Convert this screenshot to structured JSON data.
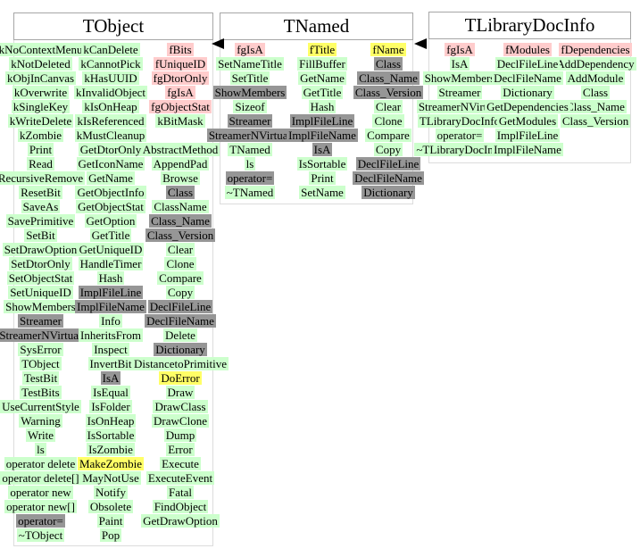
{
  "palette": {
    "green": "#ccffcc",
    "pink": "#ffcccc",
    "yellow": "#ffff66",
    "gray": "#969696"
  },
  "diagram": {
    "classes": [
      {
        "id": "tobject",
        "title": "TObject",
        "columns": [
          [
            [
              "kNoContextMenu",
              "green"
            ],
            [
              "kNotDeleted",
              "green"
            ],
            [
              "kObjInCanvas",
              "green"
            ],
            [
              "kOverwrite",
              "green"
            ],
            [
              "kSingleKey",
              "green"
            ],
            [
              "kWriteDelete",
              "green"
            ],
            [
              "kZombie",
              "green"
            ],
            [
              "Print",
              "green"
            ],
            [
              "Read",
              "green"
            ],
            [
              "RecursiveRemove",
              "green"
            ],
            [
              "ResetBit",
              "green"
            ],
            [
              "SaveAs",
              "green"
            ],
            [
              "SavePrimitive",
              "green"
            ],
            [
              "SetBit",
              "green"
            ],
            [
              "SetDrawOption",
              "green"
            ],
            [
              "SetDtorOnly",
              "green"
            ],
            [
              "SetObjectStat",
              "green"
            ],
            [
              "SetUniqueID",
              "green"
            ],
            [
              "ShowMembers",
              "green"
            ],
            [
              "Streamer",
              "gray"
            ],
            [
              "StreamerNVirtual",
              "gray"
            ],
            [
              "SysError",
              "green"
            ],
            [
              "TObject",
              "green"
            ],
            [
              "TestBit",
              "green"
            ],
            [
              "TestBits",
              "green"
            ],
            [
              "UseCurrentStyle",
              "green"
            ],
            [
              "Warning",
              "green"
            ],
            [
              "Write",
              "green"
            ],
            [
              "ls",
              "green"
            ],
            [
              "operator delete",
              "green"
            ],
            [
              "operator delete[]",
              "green"
            ],
            [
              "operator new",
              "green"
            ],
            [
              "operator new[]",
              "green"
            ],
            [
              "operator=",
              "gray"
            ],
            [
              "~TObject",
              "green"
            ]
          ],
          [
            [
              "kCanDelete",
              "green"
            ],
            [
              "kCannotPick",
              "green"
            ],
            [
              "kHasUUID",
              "green"
            ],
            [
              "kInvalidObject",
              "green"
            ],
            [
              "kIsOnHeap",
              "green"
            ],
            [
              "kIsReferenced",
              "green"
            ],
            [
              "kMustCleanup",
              "green"
            ],
            [
              "GetDtorOnly",
              "green"
            ],
            [
              "GetIconName",
              "green"
            ],
            [
              "GetName",
              "green"
            ],
            [
              "GetObjectInfo",
              "green"
            ],
            [
              "GetObjectStat",
              "green"
            ],
            [
              "GetOption",
              "green"
            ],
            [
              "GetTitle",
              "green"
            ],
            [
              "GetUniqueID",
              "green"
            ],
            [
              "HandleTimer",
              "green"
            ],
            [
              "Hash",
              "green"
            ],
            [
              "ImplFileLine",
              "gray"
            ],
            [
              "ImplFileName",
              "gray"
            ],
            [
              "Info",
              "green"
            ],
            [
              "InheritsFrom",
              "green"
            ],
            [
              "Inspect",
              "green"
            ],
            [
              "InvertBit",
              "green"
            ],
            [
              "IsA",
              "gray"
            ],
            [
              "IsEqual",
              "green"
            ],
            [
              "IsFolder",
              "green"
            ],
            [
              "IsOnHeap",
              "green"
            ],
            [
              "IsSortable",
              "green"
            ],
            [
              "IsZombie",
              "green"
            ],
            [
              "MakeZombie",
              "yellow"
            ],
            [
              "MayNotUse",
              "green"
            ],
            [
              "Notify",
              "green"
            ],
            [
              "Obsolete",
              "green"
            ],
            [
              "Paint",
              "green"
            ],
            [
              "Pop",
              "green"
            ]
          ],
          [
            [
              "fBits",
              "pink"
            ],
            [
              "fUniqueID",
              "pink"
            ],
            [
              "fgDtorOnly",
              "pink"
            ],
            [
              "fgIsA",
              "pink"
            ],
            [
              "fgObjectStat",
              "pink"
            ],
            [
              "kBitMask",
              "green"
            ],
            [
              "",
              ""
            ],
            [
              "AbstractMethod",
              "green"
            ],
            [
              "AppendPad",
              "green"
            ],
            [
              "Browse",
              "green"
            ],
            [
              "Class",
              "gray"
            ],
            [
              "ClassName",
              "green"
            ],
            [
              "Class_Name",
              "gray"
            ],
            [
              "Class_Version",
              "gray"
            ],
            [
              "Clear",
              "green"
            ],
            [
              "Clone",
              "green"
            ],
            [
              "Compare",
              "green"
            ],
            [
              "Copy",
              "green"
            ],
            [
              "DeclFileLine",
              "gray"
            ],
            [
              "DeclFileName",
              "gray"
            ],
            [
              "Delete",
              "green"
            ],
            [
              "Dictionary",
              "gray"
            ],
            [
              "DistancetoPrimitive",
              "green"
            ],
            [
              "DoError",
              "yellow"
            ],
            [
              "Draw",
              "green"
            ],
            [
              "DrawClass",
              "green"
            ],
            [
              "DrawClone",
              "green"
            ],
            [
              "Dump",
              "green"
            ],
            [
              "Error",
              "green"
            ],
            [
              "Execute",
              "green"
            ],
            [
              "ExecuteEvent",
              "green"
            ],
            [
              "Fatal",
              "green"
            ],
            [
              "FindObject",
              "green"
            ],
            [
              "GetDrawOption",
              "green"
            ],
            [
              "",
              ""
            ]
          ]
        ]
      },
      {
        "id": "tnamed",
        "title": "TNamed",
        "columns": [
          [
            [
              "fgIsA",
              "pink"
            ],
            [
              "SetNameTitle",
              "green"
            ],
            [
              "SetTitle",
              "green"
            ],
            [
              "ShowMembers",
              "gray"
            ],
            [
              "Sizeof",
              "green"
            ],
            [
              "Streamer",
              "gray"
            ],
            [
              "StreamerNVirtual",
              "gray"
            ],
            [
              "TNamed",
              "green"
            ],
            [
              "ls",
              "green"
            ],
            [
              "operator=",
              "gray"
            ],
            [
              "~TNamed",
              "green"
            ]
          ],
          [
            [
              "fTitle",
              "yellow"
            ],
            [
              "FillBuffer",
              "green"
            ],
            [
              "GetName",
              "green"
            ],
            [
              "GetTitle",
              "green"
            ],
            [
              "Hash",
              "green"
            ],
            [
              "ImplFileLine",
              "gray"
            ],
            [
              "ImplFileName",
              "gray"
            ],
            [
              "IsA",
              "gray"
            ],
            [
              "IsSortable",
              "green"
            ],
            [
              "Print",
              "green"
            ],
            [
              "SetName",
              "green"
            ]
          ],
          [
            [
              "fName",
              "yellow"
            ],
            [
              "Class",
              "gray"
            ],
            [
              "Class_Name",
              "gray"
            ],
            [
              "Class_Version",
              "gray"
            ],
            [
              "Clear",
              "green"
            ],
            [
              "Clone",
              "green"
            ],
            [
              "Compare",
              "green"
            ],
            [
              "Copy",
              "green"
            ],
            [
              "DeclFileLine",
              "gray"
            ],
            [
              "DeclFileName",
              "gray"
            ],
            [
              "Dictionary",
              "gray"
            ]
          ]
        ]
      },
      {
        "id": "tlibrarydocinfo",
        "title": "TLibraryDocInfo",
        "columns": [
          [
            [
              "fgIsA",
              "pink"
            ],
            [
              "IsA",
              "green"
            ],
            [
              "ShowMembers",
              "green"
            ],
            [
              "Streamer",
              "green"
            ],
            [
              "StreamerNVirtual",
              "green"
            ],
            [
              "TLibraryDocInfo",
              "green"
            ],
            [
              "operator=",
              "green"
            ],
            [
              "~TLibraryDocInfo",
              "green"
            ]
          ],
          [
            [
              "fModules",
              "pink"
            ],
            [
              "DeclFileLine",
              "green"
            ],
            [
              "DeclFileName",
              "green"
            ],
            [
              "Dictionary",
              "green"
            ],
            [
              "GetDependencies",
              "green"
            ],
            [
              "GetModules",
              "green"
            ],
            [
              "ImplFileLine",
              "green"
            ],
            [
              "ImplFileName",
              "green"
            ]
          ],
          [
            [
              "fDependencies",
              "pink"
            ],
            [
              "AddDependency",
              "green"
            ],
            [
              "AddModule",
              "green"
            ],
            [
              "Class",
              "green"
            ],
            [
              "Class_Name",
              "green"
            ],
            [
              "Class_Version",
              "green"
            ],
            [
              "",
              ""
            ],
            [
              "",
              ""
            ]
          ]
        ]
      }
    ],
    "arrows": [
      {
        "name": "inheritance-arrow-tnamed-to-tobject"
      },
      {
        "name": "inheritance-arrow-tlibrarydocinfo-to-tnamed"
      }
    ]
  }
}
